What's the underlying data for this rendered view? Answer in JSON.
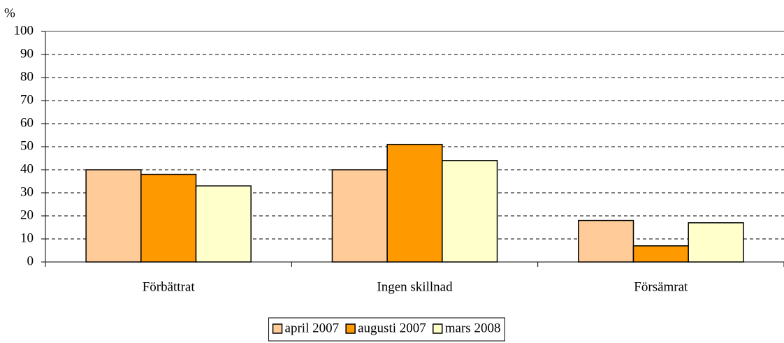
{
  "chart_data": {
    "type": "bar",
    "y_axis_label": "%",
    "categories": [
      "Förbättrat",
      "Ingen skillnad",
      "Försämrat"
    ],
    "series": [
      {
        "name": "april 2007",
        "color": "#FFCC99",
        "values": [
          40,
          40,
          18
        ]
      },
      {
        "name": "augusti 2007",
        "color": "#FF9900",
        "values": [
          38,
          51,
          7
        ]
      },
      {
        "name": "mars 2008",
        "color": "#FFFFCC",
        "values": [
          33,
          44,
          17
        ]
      }
    ],
    "ylim": [
      0,
      100
    ],
    "yticks": [
      0,
      10,
      20,
      30,
      40,
      50,
      60,
      70,
      80,
      90,
      100
    ],
    "grid": true,
    "legend": "bottom"
  }
}
